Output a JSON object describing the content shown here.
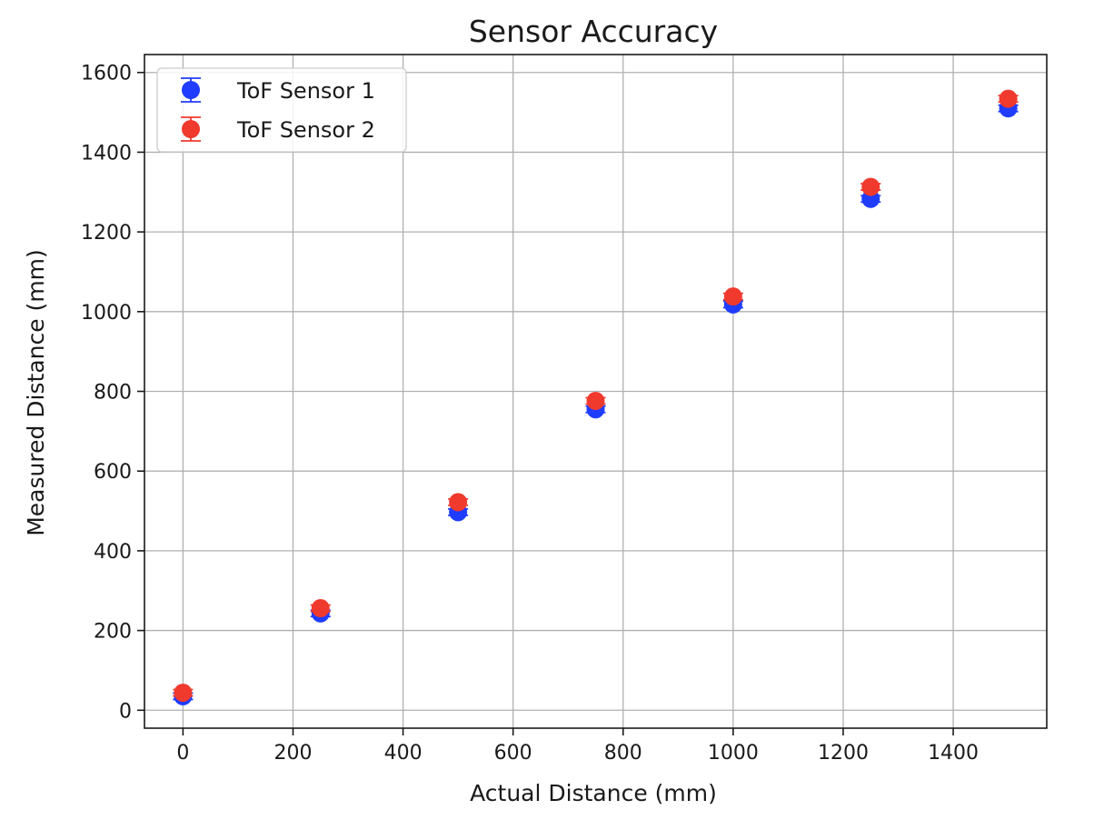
{
  "chart_data": {
    "type": "scatter",
    "title": "Sensor Accuracy",
    "xlabel": "Actual Distance (mm)",
    "ylabel": "Measured Distance (mm)",
    "xlim": [
      -70,
      1570
    ],
    "ylim": [
      -45,
      1645
    ],
    "xticks": [
      0,
      200,
      400,
      600,
      800,
      1000,
      1200,
      1400
    ],
    "yticks": [
      0,
      200,
      400,
      600,
      800,
      1000,
      1200,
      1400,
      1600
    ],
    "grid": true,
    "legend_position": "top-left",
    "series": [
      {
        "name": "ToF Sensor 1",
        "color": "#1f3cff",
        "x": [
          0,
          250,
          500,
          750,
          1000,
          1250,
          1500
        ],
        "y": [
          35,
          243,
          497,
          755,
          1018,
          1283,
          1510
        ],
        "yerr": [
          8,
          8,
          8,
          8,
          8,
          8,
          8
        ]
      },
      {
        "name": "ToF Sensor 2",
        "color": "#f03a2e",
        "x": [
          0,
          250,
          500,
          750,
          1000,
          1250,
          1500
        ],
        "y": [
          44,
          256,
          522,
          776,
          1038,
          1313,
          1534
        ],
        "yerr": [
          8,
          8,
          8,
          8,
          8,
          8,
          8
        ]
      }
    ]
  }
}
